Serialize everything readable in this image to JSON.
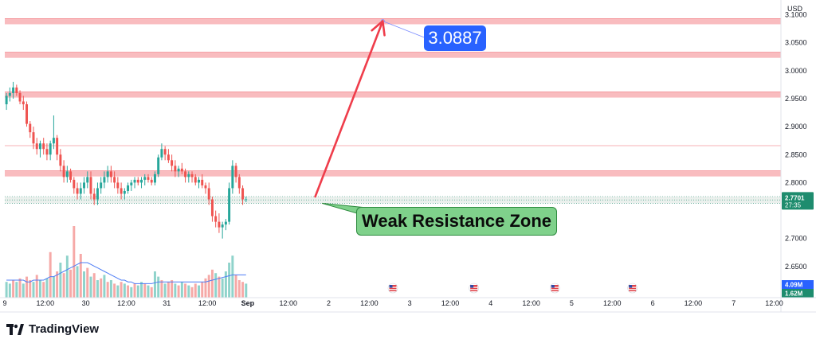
{
  "chart_data": {
    "type": "candlestick",
    "currency": "USD",
    "y_ticks": [
      3.1,
      3.05,
      3.0,
      2.95,
      2.9,
      2.85,
      2.8,
      2.7,
      2.65
    ],
    "y_tick_labels": [
      "3.1000",
      "3.0500",
      "3.0000",
      "2.9500",
      "2.9000",
      "2.8500",
      "2.8000",
      "2.7000",
      "2.6500"
    ],
    "ylim": [
      2.6,
      3.115
    ],
    "x_ticks": [
      {
        "t": 0,
        "label": "9"
      },
      {
        "t": 12,
        "label": "12:00"
      },
      {
        "t": 24,
        "label": "30"
      },
      {
        "t": 36,
        "label": "12:00"
      },
      {
        "t": 48,
        "label": "31"
      },
      {
        "t": 60,
        "label": "12:00"
      },
      {
        "t": 72,
        "label": "Sep"
      },
      {
        "t": 84,
        "label": "12:00"
      },
      {
        "t": 96,
        "label": "2"
      },
      {
        "t": 108,
        "label": "12:00"
      },
      {
        "t": 120,
        "label": "3"
      },
      {
        "t": 132,
        "label": "12:00"
      },
      {
        "t": 144,
        "label": "4"
      },
      {
        "t": 156,
        "label": "12:00"
      },
      {
        "t": 168,
        "label": "5"
      },
      {
        "t": 180,
        "label": "12:00"
      },
      {
        "t": 192,
        "label": "6"
      },
      {
        "t": 204,
        "label": "12:00"
      },
      {
        "t": 216,
        "label": "7"
      },
      {
        "t": 228,
        "label": "12:00"
      }
    ],
    "xlim": [
      0,
      230
    ],
    "resistance_zones": [
      [
        3.083,
        3.093
      ],
      [
        3.023,
        3.033
      ],
      [
        2.952,
        2.962
      ],
      [
        2.811,
        2.821
      ]
    ],
    "thin_line_level": 2.866,
    "current_zone": [
      2.763,
      2.775
    ],
    "current_price": "2.7701",
    "countdown": "27:35",
    "target_price": 3.0887,
    "target_label": "3.0887",
    "zone_label": "Weak Resistance Zone",
    "arrow_from": {
      "t": 92,
      "price": 2.775
    },
    "arrow_to": {
      "t": 112,
      "price": 3.0887
    },
    "volume_badges": {
      "upper": "4.09M",
      "lower": "1.62M"
    },
    "event_markers_t": [
      115,
      139,
      163,
      186
    ],
    "candles": [
      [
        2.94,
        2.96,
        2.93,
        2.955
      ],
      [
        2.955,
        2.97,
        2.945,
        2.96
      ],
      [
        2.96,
        2.98,
        2.95,
        2.97
      ],
      [
        2.97,
        2.975,
        2.955,
        2.96
      ],
      [
        2.96,
        2.965,
        2.94,
        2.945
      ],
      [
        2.945,
        2.955,
        2.93,
        2.94
      ],
      [
        2.94,
        2.945,
        2.9,
        2.905
      ],
      [
        2.905,
        2.91,
        2.88,
        2.89
      ],
      [
        2.89,
        2.9,
        2.86,
        2.87
      ],
      [
        2.87,
        2.88,
        2.85,
        2.86
      ],
      [
        2.86,
        2.875,
        2.845,
        2.87
      ],
      [
        2.87,
        2.88,
        2.85,
        2.86
      ],
      [
        2.86,
        2.87,
        2.84,
        2.85
      ],
      [
        2.85,
        2.875,
        2.84,
        2.87
      ],
      [
        2.87,
        2.92,
        2.86,
        2.88
      ],
      [
        2.88,
        2.885,
        2.84,
        2.85
      ],
      [
        2.85,
        2.86,
        2.82,
        2.83
      ],
      [
        2.83,
        2.84,
        2.8,
        2.81
      ],
      [
        2.81,
        2.83,
        2.8,
        2.82
      ],
      [
        2.82,
        2.825,
        2.8,
        2.805
      ],
      [
        2.805,
        2.81,
        2.78,
        2.79
      ],
      [
        2.79,
        2.8,
        2.77,
        2.78
      ],
      [
        2.78,
        2.8,
        2.77,
        2.79
      ],
      [
        2.79,
        2.81,
        2.78,
        2.8
      ],
      [
        2.8,
        2.82,
        2.79,
        2.81
      ],
      [
        2.81,
        2.82,
        2.77,
        2.78
      ],
      [
        2.78,
        2.79,
        2.76,
        2.77
      ],
      [
        2.77,
        2.8,
        2.76,
        2.79
      ],
      [
        2.79,
        2.81,
        2.78,
        2.8
      ],
      [
        2.8,
        2.82,
        2.79,
        2.81
      ],
      [
        2.81,
        2.83,
        2.8,
        2.82
      ],
      [
        2.82,
        2.83,
        2.8,
        2.81
      ],
      [
        2.81,
        2.82,
        2.79,
        2.8
      ],
      [
        2.8,
        2.81,
        2.78,
        2.79
      ],
      [
        2.79,
        2.8,
        2.77,
        2.78
      ],
      [
        2.78,
        2.79,
        2.77,
        2.785
      ],
      [
        2.785,
        2.8,
        2.78,
        2.795
      ],
      [
        2.795,
        2.805,
        2.785,
        2.8
      ],
      [
        2.8,
        2.81,
        2.79,
        2.805
      ],
      [
        2.805,
        2.81,
        2.795,
        2.8
      ],
      [
        2.8,
        2.81,
        2.79,
        2.805
      ],
      [
        2.805,
        2.815,
        2.795,
        2.81
      ],
      [
        2.81,
        2.815,
        2.8,
        2.805
      ],
      [
        2.805,
        2.81,
        2.795,
        2.8
      ],
      [
        2.8,
        2.82,
        2.795,
        2.815
      ],
      [
        2.815,
        2.85,
        2.81,
        2.845
      ],
      [
        2.845,
        2.87,
        2.84,
        2.86
      ],
      [
        2.86,
        2.865,
        2.84,
        2.85
      ],
      [
        2.85,
        2.86,
        2.835,
        2.84
      ],
      [
        2.84,
        2.85,
        2.82,
        2.83
      ],
      [
        2.83,
        2.84,
        2.81,
        2.82
      ],
      [
        2.82,
        2.83,
        2.81,
        2.825
      ],
      [
        2.825,
        2.835,
        2.815,
        2.82
      ],
      [
        2.82,
        2.825,
        2.8,
        2.81
      ],
      [
        2.81,
        2.82,
        2.8,
        2.815
      ],
      [
        2.815,
        2.82,
        2.8,
        2.81
      ],
      [
        2.81,
        2.815,
        2.795,
        2.8
      ],
      [
        2.8,
        2.81,
        2.79,
        2.805
      ],
      [
        2.805,
        2.815,
        2.79,
        2.795
      ],
      [
        2.795,
        2.8,
        2.78,
        2.79
      ],
      [
        2.79,
        2.8,
        2.76,
        2.77
      ],
      [
        2.77,
        2.775,
        2.73,
        2.74
      ],
      [
        2.74,
        2.75,
        2.72,
        2.73
      ],
      [
        2.73,
        2.745,
        2.71,
        2.72
      ],
      [
        2.72,
        2.73,
        2.7,
        2.725
      ],
      [
        2.725,
        2.735,
        2.715,
        2.73
      ],
      [
        2.73,
        2.8,
        2.725,
        2.79
      ],
      [
        2.79,
        2.84,
        2.78,
        2.83
      ],
      [
        2.83,
        2.835,
        2.8,
        2.81
      ],
      [
        2.81,
        2.815,
        2.78,
        2.79
      ],
      [
        2.79,
        2.795,
        2.76,
        2.77
      ],
      [
        2.77,
        2.775,
        2.765,
        2.7701
      ]
    ],
    "volumes": [
      [
        0.9,
        1
      ],
      [
        0.8,
        1
      ],
      [
        1.0,
        0
      ],
      [
        0.9,
        1
      ],
      [
        1.1,
        0
      ],
      [
        0.8,
        1
      ],
      [
        1.2,
        0
      ],
      [
        1.0,
        0
      ],
      [
        0.9,
        1
      ],
      [
        1.3,
        0
      ],
      [
        1.0,
        1
      ],
      [
        0.9,
        0
      ],
      [
        1.1,
        1
      ],
      [
        2.6,
        0
      ],
      [
        1.2,
        1
      ],
      [
        1.5,
        0
      ],
      [
        2.0,
        1
      ],
      [
        1.4,
        0
      ],
      [
        2.4,
        1
      ],
      [
        1.6,
        0
      ],
      [
        4.09,
        0
      ],
      [
        1.8,
        1
      ],
      [
        2.5,
        0
      ],
      [
        1.5,
        1
      ],
      [
        1.7,
        0
      ],
      [
        1.2,
        1
      ],
      [
        1.4,
        0
      ],
      [
        1.0,
        1
      ],
      [
        1.1,
        0
      ],
      [
        1.3,
        1
      ],
      [
        0.9,
        0
      ],
      [
        1.0,
        1
      ],
      [
        0.8,
        0
      ],
      [
        0.7,
        1
      ],
      [
        0.9,
        0
      ],
      [
        0.8,
        1
      ],
      [
        0.7,
        0
      ],
      [
        0.6,
        1
      ],
      [
        0.8,
        0
      ],
      [
        0.7,
        1
      ],
      [
        0.9,
        1
      ],
      [
        0.8,
        0
      ],
      [
        0.7,
        1
      ],
      [
        0.6,
        0
      ],
      [
        1.5,
        1
      ],
      [
        1.2,
        1
      ],
      [
        1.0,
        0
      ],
      [
        0.8,
        1
      ],
      [
        0.9,
        0
      ],
      [
        1.0,
        0
      ],
      [
        0.8,
        1
      ],
      [
        0.7,
        0
      ],
      [
        0.9,
        1
      ],
      [
        0.8,
        0
      ],
      [
        0.7,
        1
      ],
      [
        0.6,
        0
      ],
      [
        0.8,
        0
      ],
      [
        0.7,
        1
      ],
      [
        0.9,
        0
      ],
      [
        1.1,
        0
      ],
      [
        1.3,
        0
      ],
      [
        1.6,
        0
      ],
      [
        1.4,
        1
      ],
      [
        1.2,
        0
      ],
      [
        1.1,
        1
      ],
      [
        1.5,
        1
      ],
      [
        2.0,
        1
      ],
      [
        2.4,
        1
      ],
      [
        1.3,
        0
      ],
      [
        1.0,
        0
      ],
      [
        0.9,
        0
      ],
      [
        0.8,
        1
      ]
    ],
    "volume_ma": [
      1.0,
      1.0,
      1.0,
      1.0,
      1.0,
      1.0,
      0.9,
      0.9,
      1.0,
      1.0,
      1.0,
      1.0,
      1.1,
      1.2,
      1.2,
      1.3,
      1.4,
      1.5,
      1.6,
      1.7,
      1.8,
      1.9,
      2.0,
      2.0,
      2.0,
      1.9,
      1.8,
      1.7,
      1.6,
      1.5,
      1.4,
      1.3,
      1.2,
      1.1,
      1.0,
      1.0,
      0.9,
      0.9,
      0.8,
      0.8,
      0.8,
      0.8,
      0.8,
      0.8,
      0.85,
      0.9,
      0.9,
      0.9,
      0.9,
      0.9,
      0.9,
      0.9,
      0.9,
      0.9,
      0.9,
      0.9,
      0.9,
      0.9,
      0.9,
      0.9,
      0.95,
      1.0,
      1.05,
      1.1,
      1.15,
      1.2,
      1.25,
      1.3,
      1.3,
      1.3,
      1.3,
      1.3
    ],
    "colors": {
      "up": "#26a69a",
      "down": "#ef5350",
      "zone": "#f7a6aa",
      "zone_line": "#f06b73",
      "arrow": "#ef3d4b",
      "target_line": "#7b8cff",
      "price_badge": "#1e8c6e",
      "vol_up": "#8fd3cb",
      "vol_down": "#f6a9a7",
      "vol_ma": "#4d7cf5",
      "grid": "#f0f3fa"
    }
  },
  "ui": {
    "currency_label": "USD",
    "brand": "TradingView",
    "target_label": "3.0887",
    "zone_label": "Weak Resistance Zone"
  }
}
